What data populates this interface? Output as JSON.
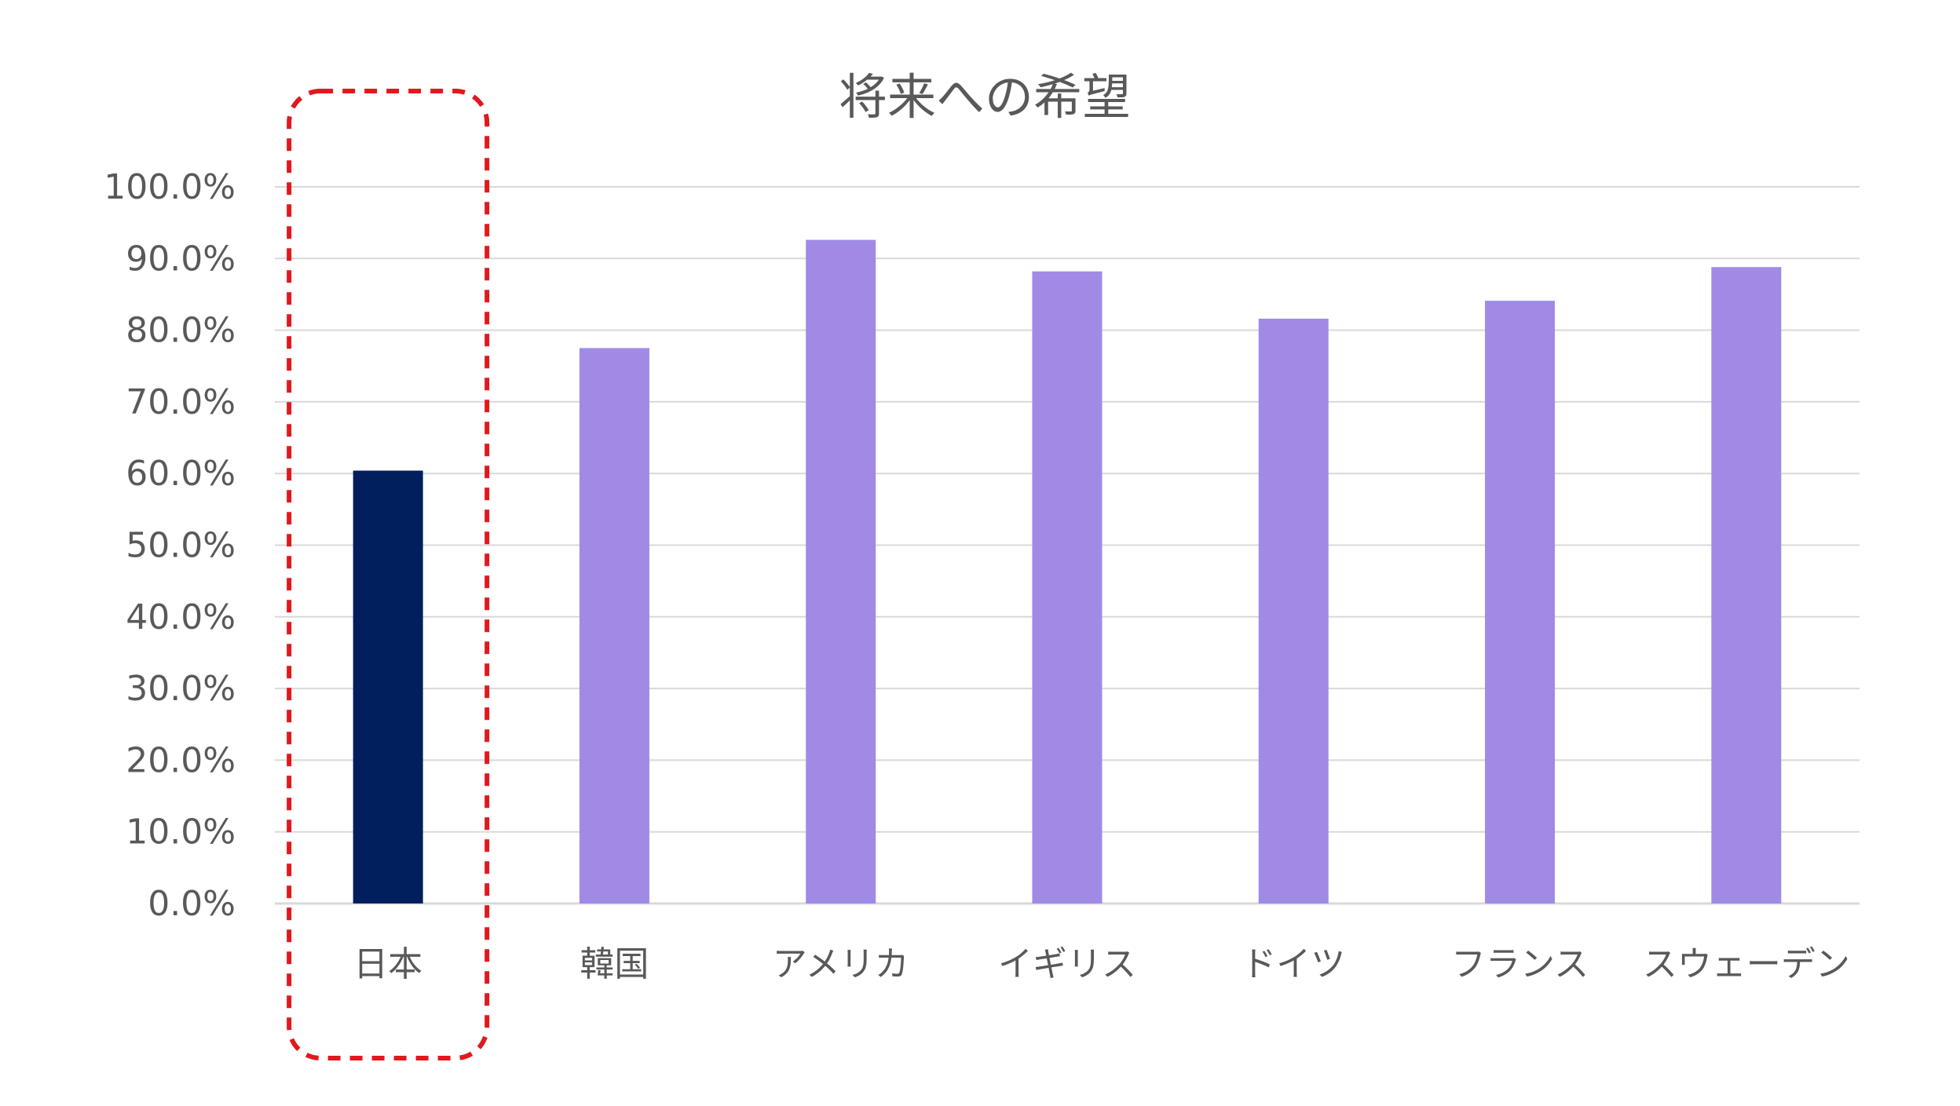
{
  "chart_data": {
    "type": "bar",
    "title": "将来への希望",
    "xlabel": "",
    "ylabel": "",
    "categories": [
      "日本",
      "韓国",
      "アメリカ",
      "イギリス",
      "ドイツ",
      "フランス",
      "スウェーデン"
    ],
    "values": [
      60.4,
      77.5,
      92.6,
      88.2,
      81.6,
      84.1,
      88.8
    ],
    "ylim": [
      0,
      100
    ],
    "yticks": [
      0,
      10,
      20,
      30,
      40,
      50,
      60,
      70,
      80,
      90,
      100
    ],
    "ytick_labels": [
      "0.0%",
      "10.0%",
      "20.0%",
      "30.0%",
      "40.0%",
      "50.0%",
      "60.0%",
      "70.0%",
      "80.0%",
      "90.0%",
      "100.0%"
    ],
    "grid": true,
    "legend": "none",
    "colors": {
      "highlight": "#001f5c",
      "default": "#a08ae6",
      "grid": "#d9d9d9",
      "text": "#595959",
      "callout": "#e0191f"
    },
    "highlight_category": "日本",
    "callout": "red dashed rounded box around 日本"
  }
}
